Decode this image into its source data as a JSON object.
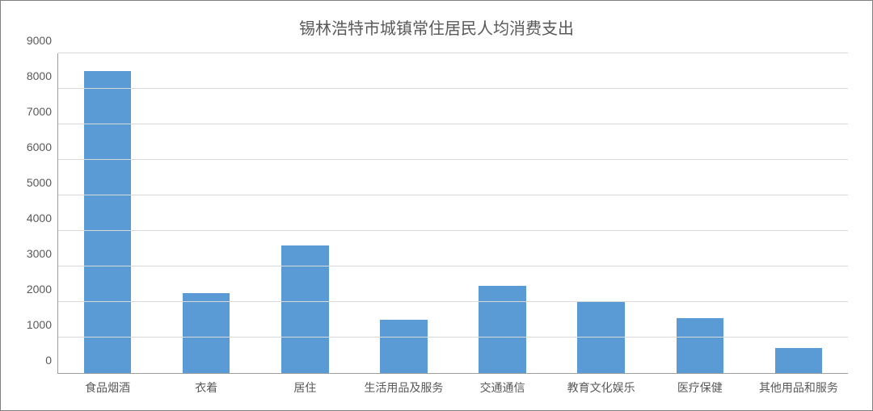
{
  "chart": {
    "type": "bar",
    "title": "锡林浩特市城镇常住居民人均消费支出",
    "title_fontsize": 20,
    "title_color": "#595959",
    "background_color": "#ffffff",
    "border_color": "#808080",
    "plot": {
      "grid_color": "#d9d9d9",
      "axis_color": "#9d9d9d",
      "y": {
        "min": 0,
        "max": 9000,
        "step": 1000,
        "ticks": [
          0,
          1000,
          2000,
          3000,
          4000,
          5000,
          6000,
          7000,
          8000,
          9000
        ],
        "label_fontsize": 14,
        "label_color": "#595959"
      },
      "x": {
        "label_fontsize": 14,
        "label_color": "#595959"
      }
    },
    "bar_color": "#5b9bd5",
    "bar_width_ratio": 0.48,
    "categories": [
      "食品烟酒",
      "衣着",
      "居住",
      "生活用品及服务",
      "交通通信",
      "教育文化娱乐",
      "医疗保健",
      "其他用品和服务"
    ],
    "values": [
      8500,
      2250,
      3600,
      1500,
      2450,
      2000,
      1550,
      700
    ]
  }
}
